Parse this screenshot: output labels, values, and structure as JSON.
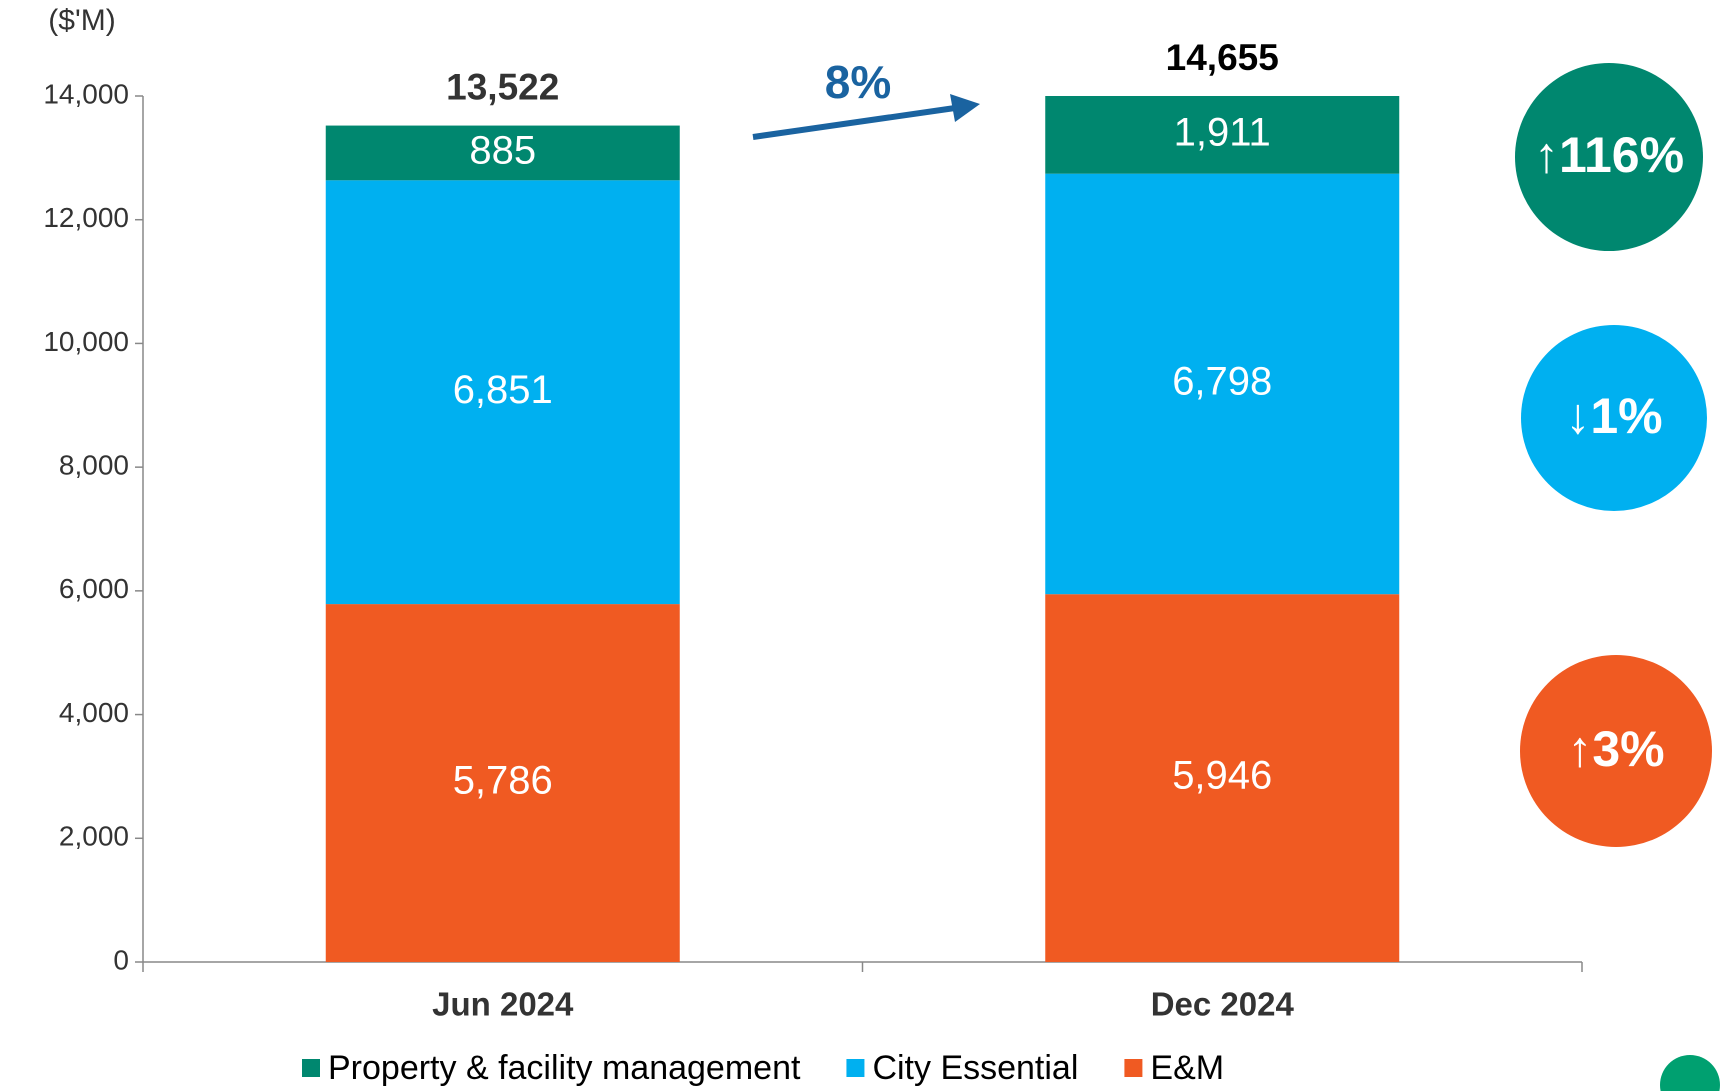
{
  "chart_data": {
    "type": "stacked_bar",
    "y_axis_label": "($'M)",
    "categories": [
      "Jun 2024",
      "Dec 2024"
    ],
    "series": [
      {
        "name": "Property & facility management",
        "color": "#00876f",
        "values": [
          885,
          1911
        ],
        "value_labels": [
          "885",
          "1,911"
        ]
      },
      {
        "name": "City Essential",
        "color": "#00b0f0",
        "values": [
          6851,
          6798
        ],
        "value_labels": [
          "6,851",
          "6,798"
        ]
      },
      {
        "name": "E&M",
        "color": "#f05a22",
        "values": [
          5786,
          5946
        ],
        "value_labels": [
          "5,786",
          "5,946"
        ]
      }
    ],
    "totals": [
      13522,
      14655
    ],
    "total_labels": [
      "13,522",
      "14,655"
    ],
    "ylim": [
      0,
      14000
    ],
    "yticks": [
      0,
      {
        "value": 2000,
        "label": "2,000"
      },
      {
        "value": 4000,
        "label": "4,000"
      },
      {
        "value": 6000,
        "label": "6,000"
      },
      {
        "value": 8000,
        "label": "8,000"
      },
      {
        "value": 10000,
        "label": "10,000"
      },
      {
        "value": 12000,
        "label": "12,000"
      },
      {
        "value": 14000,
        "label": "14,000"
      }
    ],
    "growth_label": "8%",
    "annotations": [
      {
        "text": "↑116%",
        "color": "#00876f"
      },
      {
        "text": "↓1%",
        "color": "#00b0f0"
      },
      {
        "text": "↑3%",
        "color": "#f05a22"
      }
    ]
  }
}
